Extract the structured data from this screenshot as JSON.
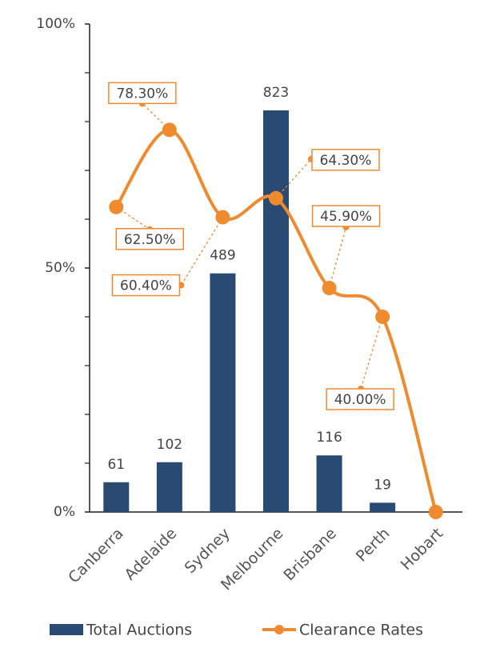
{
  "chart_data": {
    "type": "bar-line",
    "categories": [
      "Canberra",
      "Adelaide",
      "Sydney",
      "Melbourne",
      "Brisbane",
      "Perth",
      "Hobart"
    ],
    "series": [
      {
        "name": "Total Auctions",
        "type": "bar",
        "axis": "y2",
        "color": "#284a73",
        "values": [
          61,
          102,
          489,
          823,
          116,
          19,
          null
        ]
      },
      {
        "name": "Clearance Rates",
        "type": "line",
        "color": "#f08a2e",
        "values": [
          62.5,
          78.3,
          60.4,
          64.3,
          45.9,
          40.0,
          0
        ],
        "value_labels": [
          "62.50%",
          "78.30%",
          "60.40%",
          "64.30%",
          "45.90%",
          "40.00%",
          null
        ]
      }
    ],
    "ylim": [
      0,
      100
    ],
    "yticks": [
      {
        "value": 0,
        "label": "0%"
      },
      {
        "value": 50,
        "label": "50%"
      },
      {
        "value": 100,
        "label": "100%"
      }
    ],
    "yminor_ticks": [
      10,
      20,
      30,
      40,
      60,
      70,
      80,
      90
    ],
    "y2lim": [
      0,
      1000
    ],
    "legend": "bottom"
  }
}
